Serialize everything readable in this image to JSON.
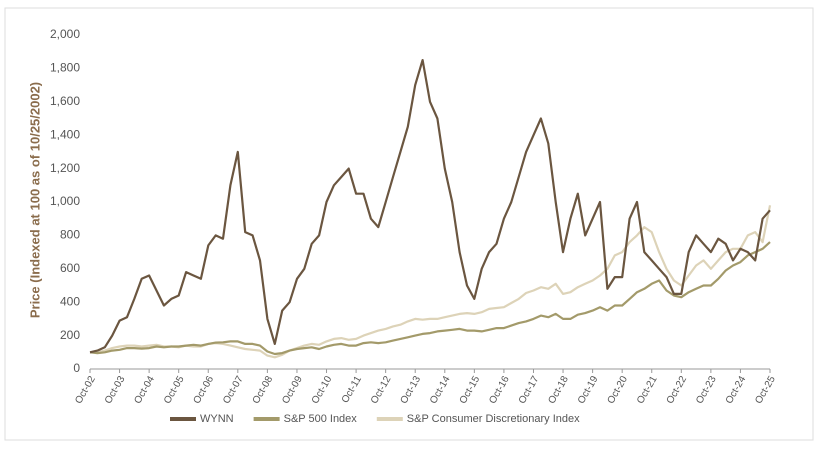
{
  "chart_data": {
    "type": "line",
    "y_label": "Price (Indexed at 100 as of  10/25/2002)",
    "categories": [
      "Oct-02",
      null,
      null,
      null,
      "Oct-03",
      null,
      null,
      null,
      "Oct-04",
      null,
      null,
      null,
      "Oct-05",
      null,
      null,
      null,
      "Oct-06",
      null,
      null,
      null,
      "Oct-07",
      null,
      null,
      null,
      "Oct-08",
      null,
      null,
      null,
      "Oct-09",
      null,
      null,
      null,
      "Oct-10",
      null,
      null,
      null,
      "Oct-11",
      null,
      null,
      null,
      "Oct-12",
      null,
      null,
      null,
      "Oct-13",
      null,
      null,
      null,
      "Oct-14",
      null,
      null,
      null,
      "Oct-15",
      null,
      null,
      null,
      "Oct-16",
      null,
      null,
      null,
      "Oct-17",
      null,
      null,
      null,
      "Oct-18",
      null,
      null,
      null,
      "Oct-19",
      null,
      null,
      null,
      "Oct-20",
      null,
      null,
      null,
      "Oct-21",
      null,
      null,
      null,
      "Oct-22",
      null,
      null,
      null,
      "Oct-23",
      null,
      null,
      null,
      "Oct-24",
      null,
      null,
      null,
      "Oct-25"
    ],
    "series": [
      {
        "name": "S&P Consumer Discretionary Index",
        "color": "#ddd3b8",
        "values": [
          100,
          100,
          110,
          125,
          135,
          140,
          140,
          135,
          140,
          145,
          135,
          135,
          130,
          140,
          135,
          135,
          150,
          155,
          150,
          140,
          130,
          120,
          115,
          110,
          80,
          70,
          85,
          110,
          125,
          140,
          150,
          145,
          165,
          180,
          185,
          175,
          180,
          200,
          215,
          230,
          240,
          255,
          265,
          285,
          300,
          295,
          300,
          300,
          310,
          320,
          330,
          335,
          330,
          340,
          360,
          365,
          370,
          395,
          420,
          455,
          470,
          490,
          480,
          510,
          450,
          460,
          490,
          510,
          530,
          560,
          600,
          680,
          700,
          760,
          800,
          850,
          820,
          700,
          600,
          530,
          500,
          560,
          620,
          650,
          600,
          650,
          700,
          720,
          720,
          800,
          820,
          760,
          980
        ]
      },
      {
        "name": "S&P 500 Index",
        "color": "#a39a6a",
        "values": [
          100,
          95,
          100,
          110,
          115,
          125,
          125,
          122,
          125,
          135,
          130,
          135,
          135,
          140,
          145,
          140,
          150,
          158,
          160,
          165,
          165,
          150,
          150,
          140,
          105,
          90,
          95,
          110,
          120,
          125,
          130,
          120,
          135,
          145,
          150,
          140,
          140,
          155,
          160,
          155,
          160,
          170,
          180,
          190,
          200,
          210,
          215,
          225,
          230,
          235,
          240,
          230,
          230,
          225,
          235,
          245,
          245,
          260,
          275,
          285,
          300,
          320,
          310,
          330,
          300,
          300,
          325,
          335,
          350,
          370,
          350,
          380,
          380,
          420,
          460,
          480,
          510,
          530,
          470,
          440,
          430,
          460,
          480,
          500,
          500,
          540,
          590,
          620,
          640,
          680,
          700,
          720,
          760
        ]
      },
      {
        "name": "WYNN",
        "color": "#6b5640",
        "values": [
          100,
          110,
          130,
          200,
          290,
          310,
          420,
          540,
          560,
          470,
          380,
          420,
          440,
          580,
          560,
          540,
          740,
          800,
          780,
          1100,
          1300,
          820,
          800,
          650,
          300,
          150,
          350,
          400,
          540,
          600,
          750,
          800,
          1000,
          1100,
          1150,
          1200,
          1050,
          1050,
          900,
          850,
          1000,
          1150,
          1300,
          1450,
          1700,
          1850,
          1600,
          1500,
          1200,
          1000,
          700,
          500,
          420,
          600,
          700,
          750,
          900,
          1000,
          1150,
          1300,
          1400,
          1500,
          1350,
          1000,
          700,
          900,
          1050,
          800,
          900,
          1000,
          480,
          550,
          550,
          900,
          1000,
          700,
          650,
          600,
          550,
          450,
          450,
          700,
          800,
          750,
          700,
          780,
          750,
          650,
          720,
          700,
          650,
          900,
          950
        ]
      }
    ],
    "ylim": [
      0,
      2000
    ],
    "yticks": [
      0,
      200,
      400,
      600,
      800,
      {
        "value": 1000,
        "label": "1,000"
      },
      {
        "value": 1200,
        "label": "1,200"
      },
      {
        "value": 1400,
        "label": "1,400"
      },
      {
        "value": 1600,
        "label": "1,600"
      },
      {
        "value": 1800,
        "label": "1,800"
      },
      {
        "value": 2000,
        "label": "2,000"
      }
    ],
    "legend_order": [
      2,
      1,
      0
    ]
  }
}
